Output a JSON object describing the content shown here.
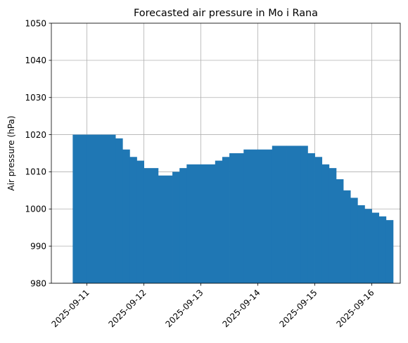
{
  "chart_data": {
    "type": "bar",
    "title": "Forecasted air pressure in Mo i Rana",
    "xlabel": "",
    "ylabel": "Air pressure (hPa)",
    "ylim": [
      980,
      1050
    ],
    "xlim": [
      "2025-09-10T09:00",
      "2025-09-16T12:00"
    ],
    "yticks": [
      980,
      990,
      1000,
      1010,
      1020,
      1030,
      1040,
      1050
    ],
    "xticks": [
      "2025-09-11",
      "2025-09-12",
      "2025-09-13",
      "2025-09-14",
      "2025-09-15",
      "2025-09-16"
    ],
    "grid": true,
    "bar_color": "#1f77b4",
    "x": [
      "2025-09-10T18:00",
      "2025-09-11T00:00",
      "2025-09-11T06:00",
      "2025-09-11T12:00",
      "2025-09-11T15:00",
      "2025-09-11T18:00",
      "2025-09-11T21:00",
      "2025-09-12T00:00",
      "2025-09-12T06:00",
      "2025-09-12T12:00",
      "2025-09-12T15:00",
      "2025-09-12T18:00",
      "2025-09-13T00:00",
      "2025-09-13T06:00",
      "2025-09-13T09:00",
      "2025-09-13T12:00",
      "2025-09-13T18:00",
      "2025-09-14T00:00",
      "2025-09-14T06:00",
      "2025-09-14T12:00",
      "2025-09-14T18:00",
      "2025-09-14T21:00",
      "2025-09-15T00:00",
      "2025-09-15T03:00",
      "2025-09-15T06:00",
      "2025-09-15T09:00",
      "2025-09-15T12:00",
      "2025-09-15T15:00",
      "2025-09-15T18:00",
      "2025-09-15T21:00",
      "2025-09-16T00:00",
      "2025-09-16T03:00",
      "2025-09-16T06:00"
    ],
    "values": [
      1020,
      1020,
      1020,
      1019,
      1016,
      1014,
      1013,
      1011,
      1009,
      1010,
      1011,
      1012,
      1012,
      1013,
      1014,
      1015,
      1016,
      1016,
      1017,
      1017,
      1017,
      1015,
      1014,
      1012,
      1011,
      1008,
      1005,
      1003,
      1001,
      1000,
      999,
      998,
      997
    ]
  }
}
